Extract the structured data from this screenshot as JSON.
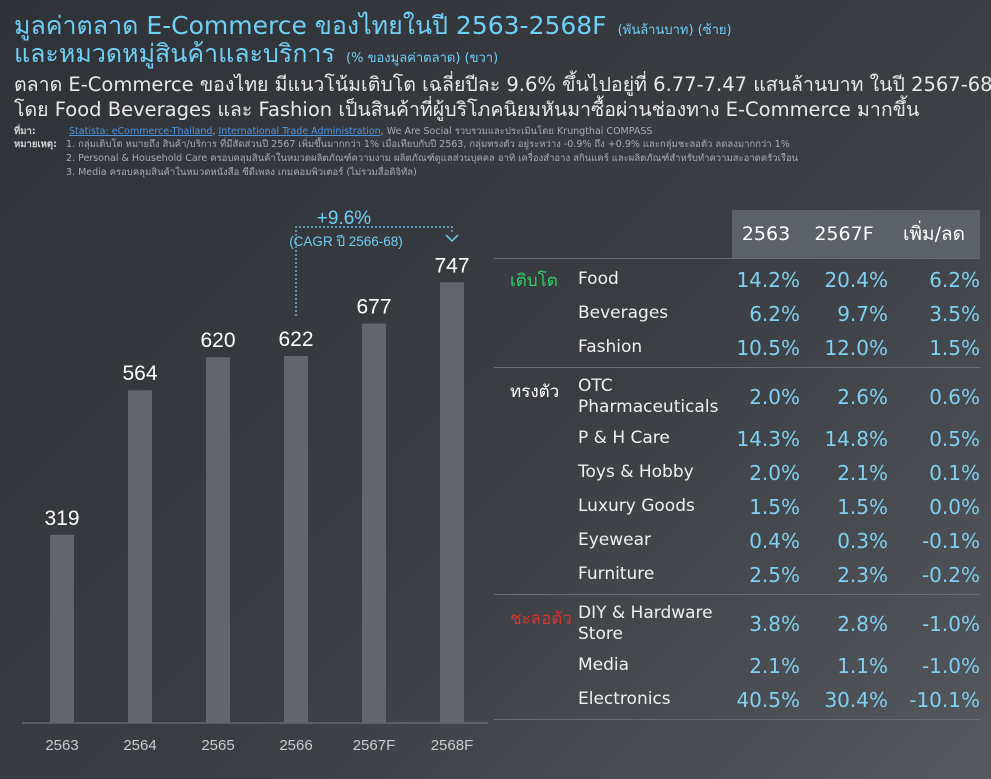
{
  "header": {
    "title_line1": "มูลค่าตลาด E-Commerce ของไทยในปี 2563-2568F",
    "title_line1_unit": "(พันล้านบาท) (ซ้าย)",
    "title_line2": "และหมวดหมู่สินค้าและบริการ",
    "title_line2_unit": "(% ของมูลค่าตลาด) (ขวา)",
    "subtitle_line1": "ตลาด E-Commerce ของไทย มีแนวโน้มเติบโต เฉลี่ยปีละ 9.6% ขึ้นไปอยู่ที่ 6.77-7.47 แสนล้านบาท ในปี 2567-68",
    "subtitle_line2": "โดย Food Beverages และ Fashion เป็นสินค้าที่ผู้บริโภคนิยมหันมาซื้อผ่านช่องทาง E-Commerce มากขึ้น"
  },
  "source": {
    "label": "ที่มา:",
    "link1": "Statista: eCommerce-Thailand",
    "sep": ", ",
    "link2": "International Trade Administration",
    "rest": ", We Are Social รวบรวมและประเมินโดย Krungthai COMPASS"
  },
  "notes": {
    "label": "หมายเหตุ:",
    "items": [
      "1. กลุ่มเติบโต หมายถึง สินค้า/บริการ ที่มีสัดส่วนปี 2567 เพิ่มขึ้นมากกว่า 1% เมื่อเทียบกับปี 2563, กลุ่มทรงตัว อยู่ระหว่าง -0.9% ถึง +0.9% และกลุ่มชะลอตัว ลดลงมากกว่า 1%",
      "2. Personal & Household Care ครอบคลุมสินค้าในหมวดผลิตภัณฑ์ความงาม ผลิตภัณฑ์ดูแลส่วนบุคคล อาทิ เครื่องสำอาง สกินแคร์ และผลิตภัณฑ์สำหรับทำความสะอาดครัวเรือน",
      "3. Media ครอบคลุมสินค้าในหมวดหนังสือ ซีดีเพลง เกมคอมพิวเตอร์ (ไม่รวมสื่อดิจิทัล)"
    ]
  },
  "chart_data": {
    "type": "bar",
    "categories": [
      "2563",
      "2564",
      "2565",
      "2566",
      "2567F",
      "2568F"
    ],
    "values": [
      319,
      564,
      620,
      622,
      677,
      747
    ],
    "ylim": [
      0,
      800
    ],
    "annotation": {
      "label": "+9.6%",
      "sublabel": "(CAGR ปี 2566-68)",
      "from": "2566",
      "to": "2568F"
    },
    "bar_color": "#63666c",
    "label_color": "#ffffff",
    "annotation_color": "#6fd0f6"
  },
  "table": {
    "headers": [
      "2563",
      "2567F",
      "เพิ่ม/ลด"
    ],
    "groups": [
      {
        "category": "เติบโต",
        "color": "green",
        "rows": [
          {
            "item": "Food",
            "v2563": "14.2%",
            "v2567": "20.4%",
            "chg": "6.2%"
          },
          {
            "item": "Beverages",
            "v2563": "6.2%",
            "v2567": "9.7%",
            "chg": "3.5%"
          },
          {
            "item": "Fashion",
            "v2563": "10.5%",
            "v2567": "12.0%",
            "chg": "1.5%"
          }
        ]
      },
      {
        "category": "ทรงตัว",
        "color": "white",
        "rows": [
          {
            "item": "OTC Pharmaceuticals",
            "v2563": "2.0%",
            "v2567": "2.6%",
            "chg": "0.6%"
          },
          {
            "item": "P & H Care",
            "v2563": "14.3%",
            "v2567": "14.8%",
            "chg": "0.5%"
          },
          {
            "item": "Toys & Hobby",
            "v2563": "2.0%",
            "v2567": "2.1%",
            "chg": "0.1%"
          },
          {
            "item": "Luxury Goods",
            "v2563": "1.5%",
            "v2567": "1.5%",
            "chg": "0.0%"
          },
          {
            "item": "Eyewear",
            "v2563": "0.4%",
            "v2567": "0.3%",
            "chg": "-0.1%"
          },
          {
            "item": "Furniture",
            "v2563": "2.5%",
            "v2567": "2.3%",
            "chg": "-0.2%"
          }
        ]
      },
      {
        "category": "ชะลอตัว",
        "color": "red",
        "rows": [
          {
            "item": "DIY & Hardware Store",
            "v2563": "3.8%",
            "v2567": "2.8%",
            "chg": "-1.0%"
          },
          {
            "item": "Media",
            "v2563": "2.1%",
            "v2567": "1.1%",
            "chg": "-1.0%"
          },
          {
            "item": "Electronics",
            "v2563": "40.5%",
            "v2567": "30.4%",
            "chg": "-10.1%"
          }
        ]
      }
    ]
  }
}
